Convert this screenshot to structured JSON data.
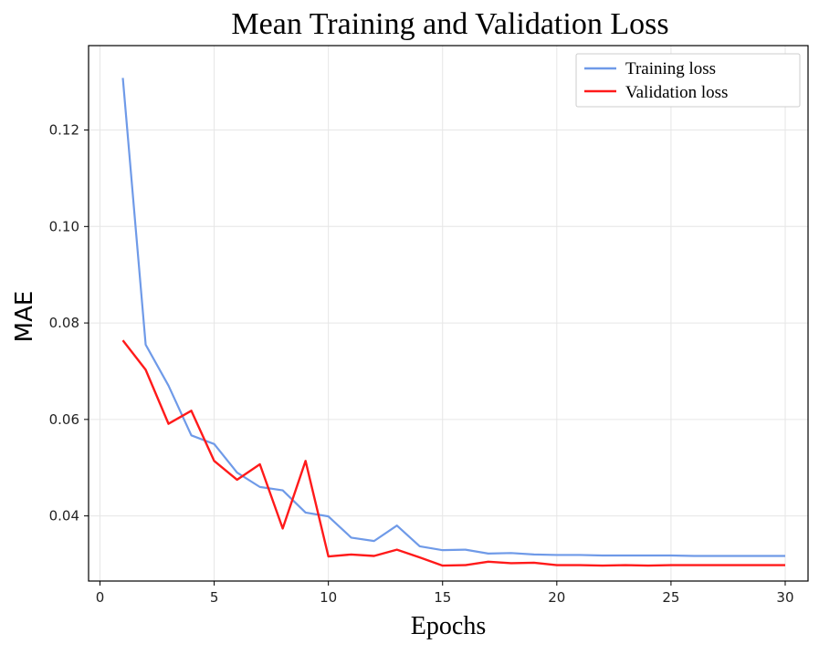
{
  "chart_data": {
    "type": "line",
    "title": "Mean Training and Validation Loss",
    "xlabel": "Epochs",
    "ylabel": "MAE",
    "xlim": [
      -0.5,
      31
    ],
    "ylim": [
      0.0265,
      0.1375
    ],
    "xticks": [
      0,
      5,
      10,
      15,
      20,
      25,
      30
    ],
    "yticks": [
      0.04,
      0.06,
      0.08,
      0.1,
      0.12
    ],
    "ytick_labels": [
      "0.04",
      "0.06",
      "0.08",
      "0.10",
      "0.12"
    ],
    "xtick_labels": [
      "0",
      "5",
      "10",
      "15",
      "20",
      "25",
      "30"
    ],
    "grid": true,
    "legend_position": "top-right",
    "x": [
      1,
      2,
      3,
      4,
      5,
      6,
      7,
      8,
      9,
      10,
      11,
      12,
      13,
      14,
      15,
      16,
      17,
      18,
      19,
      20,
      21,
      22,
      23,
      24,
      25,
      26,
      27,
      28,
      29,
      30
    ],
    "series": [
      {
        "name": "Training loss",
        "color": "#6f9ae8",
        "values": [
          0.1308,
          0.0755,
          0.067,
          0.0567,
          0.0549,
          0.049,
          0.046,
          0.0453,
          0.0407,
          0.0399,
          0.0355,
          0.0348,
          0.038,
          0.0337,
          0.0329,
          0.033,
          0.0322,
          0.0323,
          0.032,
          0.0319,
          0.0319,
          0.0318,
          0.0318,
          0.0318,
          0.0318,
          0.0317,
          0.0317,
          0.0317,
          0.0317,
          0.0317
        ]
      },
      {
        "name": "Validation loss",
        "color": "#ff1a1a",
        "values": [
          0.0764,
          0.0703,
          0.0591,
          0.0618,
          0.0514,
          0.0475,
          0.0507,
          0.0374,
          0.0514,
          0.0316,
          0.032,
          0.0317,
          0.033,
          0.0314,
          0.0297,
          0.0298,
          0.0305,
          0.0302,
          0.0303,
          0.0298,
          0.0298,
          0.0297,
          0.0298,
          0.0297,
          0.0298,
          0.0298,
          0.0298,
          0.0298,
          0.0298,
          0.0298
        ]
      }
    ]
  }
}
